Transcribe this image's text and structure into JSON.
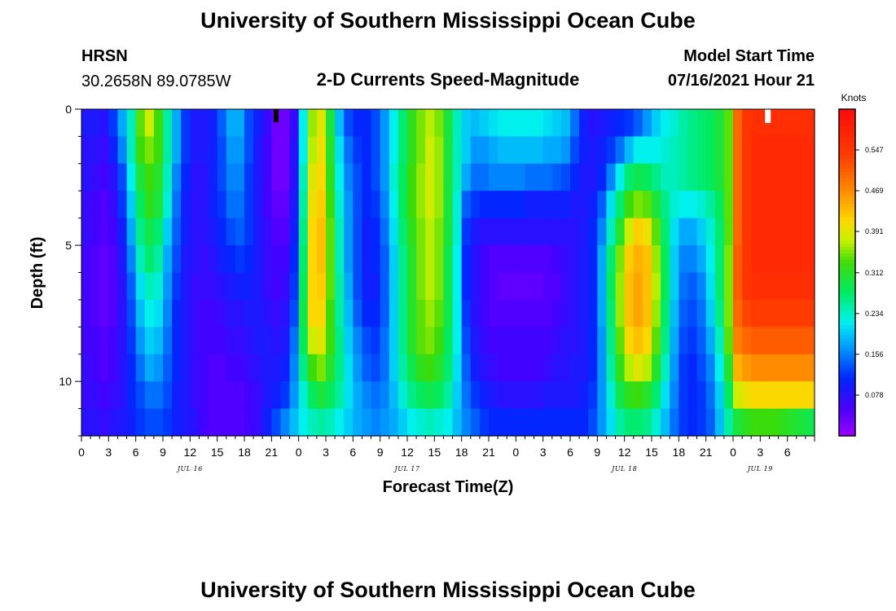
{
  "header": {
    "title_top": "University of Southern Mississippi Ocean Cube",
    "title_bottom": "University of Southern Mississippi Ocean Cube",
    "station": "HRSN",
    "coords": "30.2658N  89.0785W",
    "subtitle": "2-D Currents Speed-Magnitude",
    "model_label": "Model Start Time",
    "model_time": "07/16/2021 Hour 21"
  },
  "chart_data": {
    "type": "heatmap",
    "title": "2-D Currents Speed-Magnitude",
    "xlabel": "Forecast Time(Z)",
    "ylabel": "Depth (ft)",
    "units": "Knots",
    "colorbar_ticks": [
      "0.078",
      "0.156",
      "0.234",
      "0.312",
      "0.391",
      "0.469",
      "0.547"
    ],
    "colorbar_values": [
      0.078,
      0.156,
      0.234,
      0.312,
      0.391,
      0.469,
      0.547
    ],
    "vmin": 0.0,
    "vmax": 0.625,
    "y_ticks": [
      "0",
      "5",
      "10"
    ],
    "y_tick_values": [
      0,
      5,
      10
    ],
    "ylim": [
      0,
      12
    ],
    "xlim": [
      0,
      81
    ],
    "x_tick_labels": [
      "0",
      "3",
      "6",
      "9",
      "12",
      "15",
      "18",
      "21",
      "0",
      "3",
      "6",
      "9",
      "12",
      "15",
      "18",
      "21",
      "0",
      "3",
      "6",
      "9",
      "12",
      "15",
      "18",
      "21",
      "0",
      "3",
      "6"
    ],
    "x_tick_values": [
      0,
      3,
      6,
      9,
      12,
      15,
      18,
      21,
      24,
      27,
      30,
      33,
      36,
      39,
      42,
      45,
      48,
      51,
      54,
      57,
      60,
      63,
      66,
      69,
      72,
      75,
      78
    ],
    "date_labels": [
      "JUL 16",
      "JUL 17",
      "JUL 18",
      "JUL 19"
    ],
    "date_positions": [
      12,
      36,
      60,
      75
    ],
    "time_hours": [
      0,
      1,
      2,
      3,
      4,
      5,
      6,
      7,
      8,
      9,
      10,
      11,
      12,
      13,
      14,
      15,
      16,
      17,
      18,
      19,
      20,
      21,
      22,
      23,
      24,
      25,
      26,
      27,
      28,
      29,
      30,
      31,
      32,
      33,
      34,
      35,
      36,
      37,
      38,
      39,
      40,
      41,
      42,
      43,
      44,
      45,
      46,
      47,
      48,
      49,
      50,
      51,
      52,
      53,
      54,
      55,
      56,
      57,
      58,
      59,
      60,
      61,
      62,
      63,
      64,
      65,
      66,
      67,
      68,
      69,
      70,
      71,
      72,
      73,
      74,
      75,
      76,
      77,
      78,
      79,
      80
    ],
    "depths_ft": [
      0.5,
      1.5,
      2.5,
      3.5,
      4.5,
      5.5,
      6.5,
      7.5,
      8.5,
      9.5,
      10.5,
      11.5
    ],
    "speed_knots": [
      [
        0.09,
        0.09,
        0.08,
        0.12,
        0.18,
        0.24,
        0.34,
        0.38,
        0.33,
        0.25,
        0.18,
        0.12,
        0.09,
        0.09,
        0.1,
        0.14,
        0.18,
        0.18,
        0.13,
        0.1,
        0.07,
        0.03,
        0.03,
        0.07,
        0.22,
        0.36,
        0.39,
        0.3,
        0.19,
        0.13,
        0.11,
        0.11,
        0.13,
        0.17,
        0.22,
        0.27,
        0.32,
        0.35,
        0.37,
        0.35,
        0.3,
        0.24,
        0.2,
        0.19,
        0.2,
        0.21,
        0.22,
        0.22,
        0.22,
        0.22,
        0.22,
        0.21,
        0.2,
        0.19,
        0.15,
        0.1,
        0.08,
        0.09,
        0.1,
        0.11,
        0.12,
        0.14,
        0.17,
        0.2,
        0.22,
        0.23,
        0.25,
        0.26,
        0.27,
        0.28,
        0.3,
        0.34,
        0.5,
        0.55,
        0.56,
        0.56,
        0.56,
        0.56,
        0.56,
        0.56,
        0.56
      ],
      [
        0.08,
        0.08,
        0.07,
        0.1,
        0.16,
        0.24,
        0.33,
        0.35,
        0.33,
        0.25,
        0.18,
        0.12,
        0.09,
        0.09,
        0.1,
        0.13,
        0.17,
        0.17,
        0.13,
        0.09,
        0.06,
        0.03,
        0.03,
        0.08,
        0.22,
        0.37,
        0.4,
        0.31,
        0.21,
        0.15,
        0.12,
        0.11,
        0.13,
        0.17,
        0.22,
        0.27,
        0.32,
        0.35,
        0.38,
        0.36,
        0.3,
        0.24,
        0.2,
        0.17,
        0.17,
        0.18,
        0.19,
        0.19,
        0.19,
        0.19,
        0.19,
        0.18,
        0.18,
        0.17,
        0.13,
        0.1,
        0.09,
        0.1,
        0.12,
        0.15,
        0.19,
        0.22,
        0.22,
        0.22,
        0.23,
        0.24,
        0.25,
        0.26,
        0.27,
        0.28,
        0.3,
        0.34,
        0.5,
        0.55,
        0.57,
        0.57,
        0.57,
        0.57,
        0.57,
        0.57,
        0.57
      ],
      [
        0.08,
        0.07,
        0.06,
        0.08,
        0.13,
        0.22,
        0.3,
        0.33,
        0.31,
        0.24,
        0.16,
        0.11,
        0.08,
        0.08,
        0.1,
        0.13,
        0.16,
        0.16,
        0.12,
        0.09,
        0.06,
        0.03,
        0.03,
        0.08,
        0.24,
        0.39,
        0.41,
        0.32,
        0.22,
        0.16,
        0.13,
        0.11,
        0.13,
        0.17,
        0.23,
        0.28,
        0.33,
        0.36,
        0.38,
        0.36,
        0.3,
        0.24,
        0.18,
        0.15,
        0.15,
        0.16,
        0.16,
        0.16,
        0.16,
        0.15,
        0.15,
        0.15,
        0.14,
        0.13,
        0.11,
        0.09,
        0.09,
        0.11,
        0.16,
        0.22,
        0.27,
        0.29,
        0.28,
        0.26,
        0.24,
        0.24,
        0.25,
        0.26,
        0.27,
        0.28,
        0.3,
        0.34,
        0.5,
        0.55,
        0.57,
        0.57,
        0.57,
        0.57,
        0.57,
        0.57,
        0.57
      ],
      [
        0.07,
        0.06,
        0.05,
        0.07,
        0.12,
        0.2,
        0.28,
        0.32,
        0.3,
        0.23,
        0.15,
        0.1,
        0.08,
        0.08,
        0.1,
        0.12,
        0.15,
        0.15,
        0.12,
        0.09,
        0.06,
        0.04,
        0.04,
        0.09,
        0.25,
        0.4,
        0.42,
        0.33,
        0.23,
        0.17,
        0.13,
        0.11,
        0.12,
        0.16,
        0.22,
        0.28,
        0.33,
        0.36,
        0.38,
        0.36,
        0.3,
        0.23,
        0.14,
        0.12,
        0.11,
        0.11,
        0.11,
        0.11,
        0.11,
        0.1,
        0.1,
        0.1,
        0.1,
        0.1,
        0.09,
        0.09,
        0.1,
        0.14,
        0.21,
        0.27,
        0.33,
        0.35,
        0.34,
        0.3,
        0.26,
        0.23,
        0.22,
        0.22,
        0.23,
        0.25,
        0.28,
        0.34,
        0.5,
        0.55,
        0.57,
        0.57,
        0.57,
        0.57,
        0.57,
        0.57,
        0.57
      ],
      [
        0.07,
        0.06,
        0.05,
        0.06,
        0.1,
        0.18,
        0.26,
        0.29,
        0.27,
        0.2,
        0.14,
        0.1,
        0.08,
        0.08,
        0.09,
        0.11,
        0.13,
        0.14,
        0.12,
        0.09,
        0.07,
        0.05,
        0.05,
        0.1,
        0.26,
        0.41,
        0.43,
        0.34,
        0.24,
        0.17,
        0.13,
        0.1,
        0.11,
        0.15,
        0.21,
        0.27,
        0.32,
        0.35,
        0.37,
        0.35,
        0.3,
        0.23,
        0.12,
        0.09,
        0.08,
        0.08,
        0.08,
        0.08,
        0.08,
        0.08,
        0.08,
        0.08,
        0.08,
        0.08,
        0.08,
        0.09,
        0.11,
        0.16,
        0.24,
        0.31,
        0.38,
        0.42,
        0.4,
        0.34,
        0.27,
        0.21,
        0.18,
        0.18,
        0.2,
        0.23,
        0.27,
        0.34,
        0.5,
        0.55,
        0.57,
        0.57,
        0.57,
        0.57,
        0.57,
        0.57,
        0.57
      ],
      [
        0.06,
        0.05,
        0.04,
        0.05,
        0.09,
        0.16,
        0.24,
        0.27,
        0.25,
        0.18,
        0.13,
        0.09,
        0.08,
        0.07,
        0.08,
        0.1,
        0.11,
        0.12,
        0.11,
        0.09,
        0.07,
        0.06,
        0.06,
        0.11,
        0.27,
        0.41,
        0.43,
        0.34,
        0.24,
        0.17,
        0.13,
        0.1,
        0.11,
        0.14,
        0.2,
        0.26,
        0.31,
        0.35,
        0.37,
        0.35,
        0.29,
        0.22,
        0.11,
        0.08,
        0.06,
        0.05,
        0.05,
        0.05,
        0.05,
        0.05,
        0.05,
        0.05,
        0.06,
        0.07,
        0.08,
        0.09,
        0.11,
        0.18,
        0.27,
        0.35,
        0.42,
        0.44,
        0.43,
        0.36,
        0.28,
        0.2,
        0.16,
        0.16,
        0.18,
        0.22,
        0.27,
        0.35,
        0.51,
        0.55,
        0.57,
        0.57,
        0.57,
        0.57,
        0.57,
        0.57,
        0.57
      ],
      [
        0.06,
        0.05,
        0.04,
        0.05,
        0.08,
        0.14,
        0.21,
        0.24,
        0.23,
        0.17,
        0.12,
        0.09,
        0.07,
        0.07,
        0.07,
        0.08,
        0.09,
        0.1,
        0.1,
        0.09,
        0.07,
        0.06,
        0.07,
        0.12,
        0.28,
        0.41,
        0.42,
        0.34,
        0.25,
        0.18,
        0.13,
        0.1,
        0.1,
        0.14,
        0.2,
        0.26,
        0.31,
        0.35,
        0.37,
        0.35,
        0.29,
        0.22,
        0.11,
        0.08,
        0.06,
        0.05,
        0.04,
        0.04,
        0.04,
        0.04,
        0.04,
        0.05,
        0.05,
        0.07,
        0.08,
        0.09,
        0.11,
        0.18,
        0.28,
        0.36,
        0.43,
        0.45,
        0.43,
        0.37,
        0.28,
        0.2,
        0.15,
        0.14,
        0.16,
        0.21,
        0.27,
        0.35,
        0.51,
        0.55,
        0.56,
        0.56,
        0.56,
        0.56,
        0.56,
        0.56,
        0.56
      ],
      [
        0.06,
        0.05,
        0.04,
        0.05,
        0.08,
        0.13,
        0.19,
        0.22,
        0.21,
        0.16,
        0.11,
        0.09,
        0.07,
        0.06,
        0.06,
        0.07,
        0.08,
        0.08,
        0.09,
        0.09,
        0.08,
        0.07,
        0.08,
        0.13,
        0.29,
        0.41,
        0.41,
        0.33,
        0.25,
        0.19,
        0.14,
        0.11,
        0.11,
        0.14,
        0.2,
        0.26,
        0.31,
        0.34,
        0.36,
        0.34,
        0.29,
        0.22,
        0.12,
        0.08,
        0.06,
        0.05,
        0.05,
        0.05,
        0.05,
        0.05,
        0.05,
        0.05,
        0.06,
        0.07,
        0.08,
        0.09,
        0.11,
        0.18,
        0.27,
        0.36,
        0.43,
        0.45,
        0.43,
        0.36,
        0.27,
        0.19,
        0.14,
        0.13,
        0.15,
        0.2,
        0.26,
        0.35,
        0.5,
        0.53,
        0.54,
        0.54,
        0.54,
        0.54,
        0.54,
        0.54,
        0.54
      ],
      [
        0.06,
        0.06,
        0.05,
        0.06,
        0.08,
        0.12,
        0.17,
        0.2,
        0.19,
        0.15,
        0.11,
        0.09,
        0.07,
        0.06,
        0.06,
        0.06,
        0.07,
        0.07,
        0.08,
        0.09,
        0.09,
        0.08,
        0.09,
        0.15,
        0.28,
        0.38,
        0.39,
        0.33,
        0.26,
        0.2,
        0.16,
        0.13,
        0.12,
        0.15,
        0.2,
        0.26,
        0.31,
        0.34,
        0.35,
        0.33,
        0.28,
        0.22,
        0.13,
        0.09,
        0.07,
        0.06,
        0.06,
        0.06,
        0.06,
        0.06,
        0.06,
        0.06,
        0.07,
        0.08,
        0.08,
        0.09,
        0.11,
        0.17,
        0.26,
        0.34,
        0.41,
        0.43,
        0.41,
        0.34,
        0.26,
        0.18,
        0.13,
        0.12,
        0.14,
        0.18,
        0.24,
        0.34,
        0.48,
        0.5,
        0.51,
        0.51,
        0.51,
        0.51,
        0.51,
        0.51,
        0.51
      ],
      [
        0.07,
        0.06,
        0.05,
        0.06,
        0.08,
        0.11,
        0.15,
        0.18,
        0.17,
        0.14,
        0.11,
        0.09,
        0.07,
        0.06,
        0.05,
        0.05,
        0.06,
        0.06,
        0.07,
        0.08,
        0.09,
        0.09,
        0.1,
        0.16,
        0.26,
        0.33,
        0.35,
        0.31,
        0.26,
        0.21,
        0.17,
        0.14,
        0.13,
        0.15,
        0.2,
        0.25,
        0.29,
        0.32,
        0.33,
        0.31,
        0.27,
        0.21,
        0.14,
        0.1,
        0.08,
        0.07,
        0.06,
        0.06,
        0.06,
        0.06,
        0.06,
        0.07,
        0.08,
        0.08,
        0.09,
        0.09,
        0.11,
        0.17,
        0.25,
        0.32,
        0.37,
        0.39,
        0.37,
        0.31,
        0.24,
        0.17,
        0.12,
        0.11,
        0.13,
        0.16,
        0.22,
        0.31,
        0.44,
        0.46,
        0.47,
        0.47,
        0.47,
        0.47,
        0.47,
        0.47,
        0.47
      ],
      [
        0.07,
        0.07,
        0.06,
        0.07,
        0.08,
        0.11,
        0.13,
        0.15,
        0.15,
        0.13,
        0.1,
        0.09,
        0.07,
        0.06,
        0.05,
        0.05,
        0.05,
        0.05,
        0.06,
        0.07,
        0.09,
        0.1,
        0.12,
        0.17,
        0.23,
        0.28,
        0.3,
        0.28,
        0.25,
        0.21,
        0.18,
        0.16,
        0.15,
        0.16,
        0.19,
        0.23,
        0.26,
        0.28,
        0.29,
        0.28,
        0.25,
        0.2,
        0.15,
        0.12,
        0.1,
        0.09,
        0.08,
        0.08,
        0.08,
        0.08,
        0.08,
        0.09,
        0.09,
        0.09,
        0.09,
        0.1,
        0.12,
        0.17,
        0.23,
        0.29,
        0.32,
        0.33,
        0.31,
        0.27,
        0.21,
        0.16,
        0.12,
        0.11,
        0.12,
        0.15,
        0.2,
        0.28,
        0.38,
        0.4,
        0.41,
        0.41,
        0.41,
        0.41,
        0.41,
        0.41,
        0.41
      ],
      [
        0.08,
        0.08,
        0.07,
        0.08,
        0.09,
        0.1,
        0.12,
        0.13,
        0.13,
        0.12,
        0.1,
        0.09,
        0.08,
        0.06,
        0.05,
        0.05,
        0.05,
        0.05,
        0.06,
        0.07,
        0.1,
        0.13,
        0.16,
        0.19,
        0.22,
        0.24,
        0.25,
        0.24,
        0.22,
        0.2,
        0.18,
        0.17,
        0.16,
        0.17,
        0.18,
        0.2,
        0.22,
        0.23,
        0.24,
        0.23,
        0.22,
        0.19,
        0.16,
        0.14,
        0.12,
        0.11,
        0.11,
        0.11,
        0.11,
        0.11,
        0.11,
        0.11,
        0.11,
        0.11,
        0.11,
        0.11,
        0.13,
        0.17,
        0.21,
        0.25,
        0.27,
        0.27,
        0.26,
        0.23,
        0.19,
        0.15,
        0.12,
        0.11,
        0.12,
        0.14,
        0.19,
        0.25,
        0.3,
        0.32,
        0.33,
        0.33,
        0.33,
        0.32,
        0.31,
        0.3,
        0.29
      ]
    ]
  },
  "colors": {
    "background": "#ffffff",
    "time_marker_start": "#000000",
    "time_marker_end": "#ffffff"
  }
}
